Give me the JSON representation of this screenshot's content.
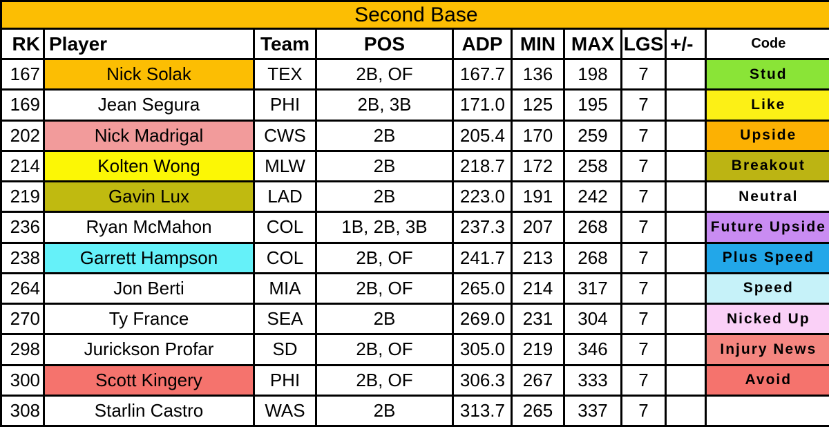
{
  "chart_data": {
    "type": "table",
    "title": "Second Base",
    "title_bg": "#FCBE03",
    "border_color": "#000000",
    "columns": [
      {
        "key": "rk",
        "label": "RK"
      },
      {
        "key": "player",
        "label": "Player"
      },
      {
        "key": "team",
        "label": "Team"
      },
      {
        "key": "pos",
        "label": "POS"
      },
      {
        "key": "adp",
        "label": "ADP"
      },
      {
        "key": "min",
        "label": "MIN"
      },
      {
        "key": "max",
        "label": "MAX"
      },
      {
        "key": "lgs",
        "label": "LGS"
      },
      {
        "key": "plus_minus",
        "label": "+/-"
      },
      {
        "key": "code",
        "label": "Code"
      }
    ],
    "rows": [
      {
        "rk": "167",
        "player": "Nick Solak",
        "team": "TEX",
        "pos": "2B, OF",
        "adp": "167.7",
        "min": "136",
        "max": "198",
        "lgs": "7",
        "plus_minus": "",
        "code": "Stud",
        "player_bg": "#FCBE03",
        "code_bg": "#8AE437"
      },
      {
        "rk": "169",
        "player": "Jean Segura",
        "team": "PHI",
        "pos": "2B, 3B",
        "adp": "171.0",
        "min": "125",
        "max": "195",
        "lgs": "7",
        "plus_minus": "",
        "code": "Like",
        "player_bg": "",
        "code_bg": "#FCF016"
      },
      {
        "rk": "202",
        "player": "Nick Madrigal",
        "team": "CWS",
        "pos": "2B",
        "adp": "205.4",
        "min": "170",
        "max": "259",
        "lgs": "7",
        "plus_minus": "",
        "code": "Upside",
        "player_bg": "#F29B9B",
        "code_bg": "#FCB103"
      },
      {
        "rk": "214",
        "player": "Kolten Wong",
        "team": "MLW",
        "pos": "2B",
        "adp": "218.7",
        "min": "172",
        "max": "258",
        "lgs": "7",
        "plus_minus": "",
        "code": "Breakout",
        "player_bg": "#FCF705",
        "code_bg": "#BCB413"
      },
      {
        "rk": "219",
        "player": "Gavin Lux",
        "team": "LAD",
        "pos": "2B",
        "adp": "223.0",
        "min": "191",
        "max": "242",
        "lgs": "7",
        "plus_minus": "",
        "code": "Neutral",
        "player_bg": "#C0BA10",
        "code_bg": ""
      },
      {
        "rk": "236",
        "player": "Ryan McMahon",
        "team": "COL",
        "pos": "1B, 2B, 3B",
        "adp": "237.3",
        "min": "207",
        "max": "268",
        "lgs": "7",
        "plus_minus": "",
        "code": "Future Upside",
        "player_bg": "",
        "code_bg": "#C98CF2"
      },
      {
        "rk": "238",
        "player": "Garrett Hampson",
        "team": "COL",
        "pos": "2B, OF",
        "adp": "241.7",
        "min": "213",
        "max": "268",
        "lgs": "7",
        "plus_minus": "",
        "code": "Plus Speed",
        "player_bg": "#65F1F9",
        "code_bg": "#22A7E9"
      },
      {
        "rk": "264",
        "player": "Jon Berti",
        "team": "MIA",
        "pos": "2B, OF",
        "adp": "265.0",
        "min": "214",
        "max": "317",
        "lgs": "7",
        "plus_minus": "",
        "code": "Speed",
        "player_bg": "",
        "code_bg": "#C6F2F9"
      },
      {
        "rk": "270",
        "player": "Ty France",
        "team": "SEA",
        "pos": "2B",
        "adp": "269.0",
        "min": "231",
        "max": "304",
        "lgs": "7",
        "plus_minus": "",
        "code": "Nicked Up",
        "player_bg": "",
        "code_bg": "#FAD0F7"
      },
      {
        "rk": "298",
        "player": "Jurickson Profar",
        "team": "SD",
        "pos": "2B, OF",
        "adp": "305.0",
        "min": "219",
        "max": "346",
        "lgs": "7",
        "plus_minus": "",
        "code": "Injury News",
        "player_bg": "",
        "code_bg": "#F58680"
      },
      {
        "rk": "300",
        "player": "Scott Kingery",
        "team": "PHI",
        "pos": "2B, OF",
        "adp": "306.3",
        "min": "267",
        "max": "333",
        "lgs": "7",
        "plus_minus": "",
        "code": "Avoid",
        "player_bg": "#F5736D",
        "code_bg": "#F5736D"
      },
      {
        "rk": "308",
        "player": "Starlin Castro",
        "team": "WAS",
        "pos": "2B",
        "adp": "313.7",
        "min": "265",
        "max": "337",
        "lgs": "7",
        "plus_minus": "",
        "code": "",
        "player_bg": "",
        "code_bg": ""
      }
    ],
    "code_legend_colors": {
      "Stud": "#8AE437",
      "Like": "#FCF016",
      "Upside": "#FCB103",
      "Breakout": "#BCB413",
      "Neutral": "#FFFFFF",
      "Future Upside": "#C98CF2",
      "Plus Speed": "#22A7E9",
      "Speed": "#C6F2F9",
      "Nicked Up": "#FAD0F7",
      "Injury News": "#F58680",
      "Avoid": "#F5736D"
    }
  }
}
